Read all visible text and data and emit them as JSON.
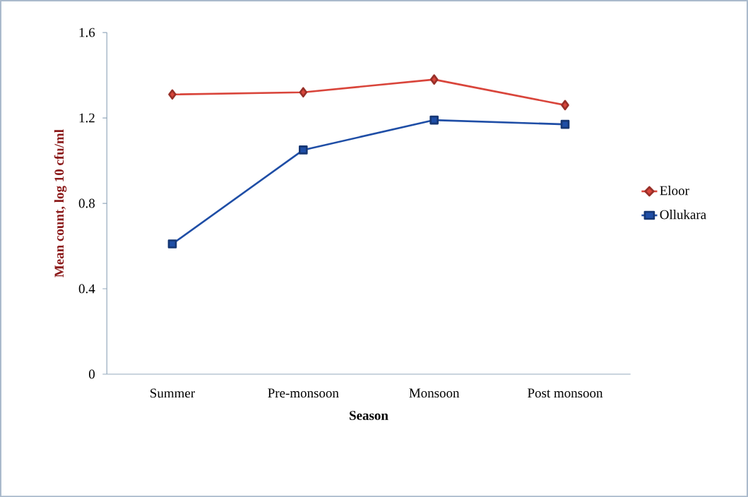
{
  "chart_data": {
    "type": "line",
    "xlabel": "Season",
    "ylabel": "Mean count, log 10 cfu/ml",
    "categories": [
      "Summer",
      "Pre-monsoon",
      "Monsoon",
      "Post monsoon"
    ],
    "series": [
      {
        "name": "Eloor",
        "color": "#d9453b",
        "marker": "diamond",
        "values": [
          1.31,
          1.32,
          1.38,
          1.26
        ]
      },
      {
        "name": "Ollukara",
        "color": "#1f4ea6",
        "marker": "square",
        "values": [
          0.61,
          1.05,
          1.19,
          1.17
        ]
      }
    ],
    "ylim": [
      0,
      1.6
    ],
    "yticks": [
      0,
      0.4,
      0.8,
      1.2,
      1.6
    ],
    "legend": "right",
    "line_style": "solid"
  }
}
